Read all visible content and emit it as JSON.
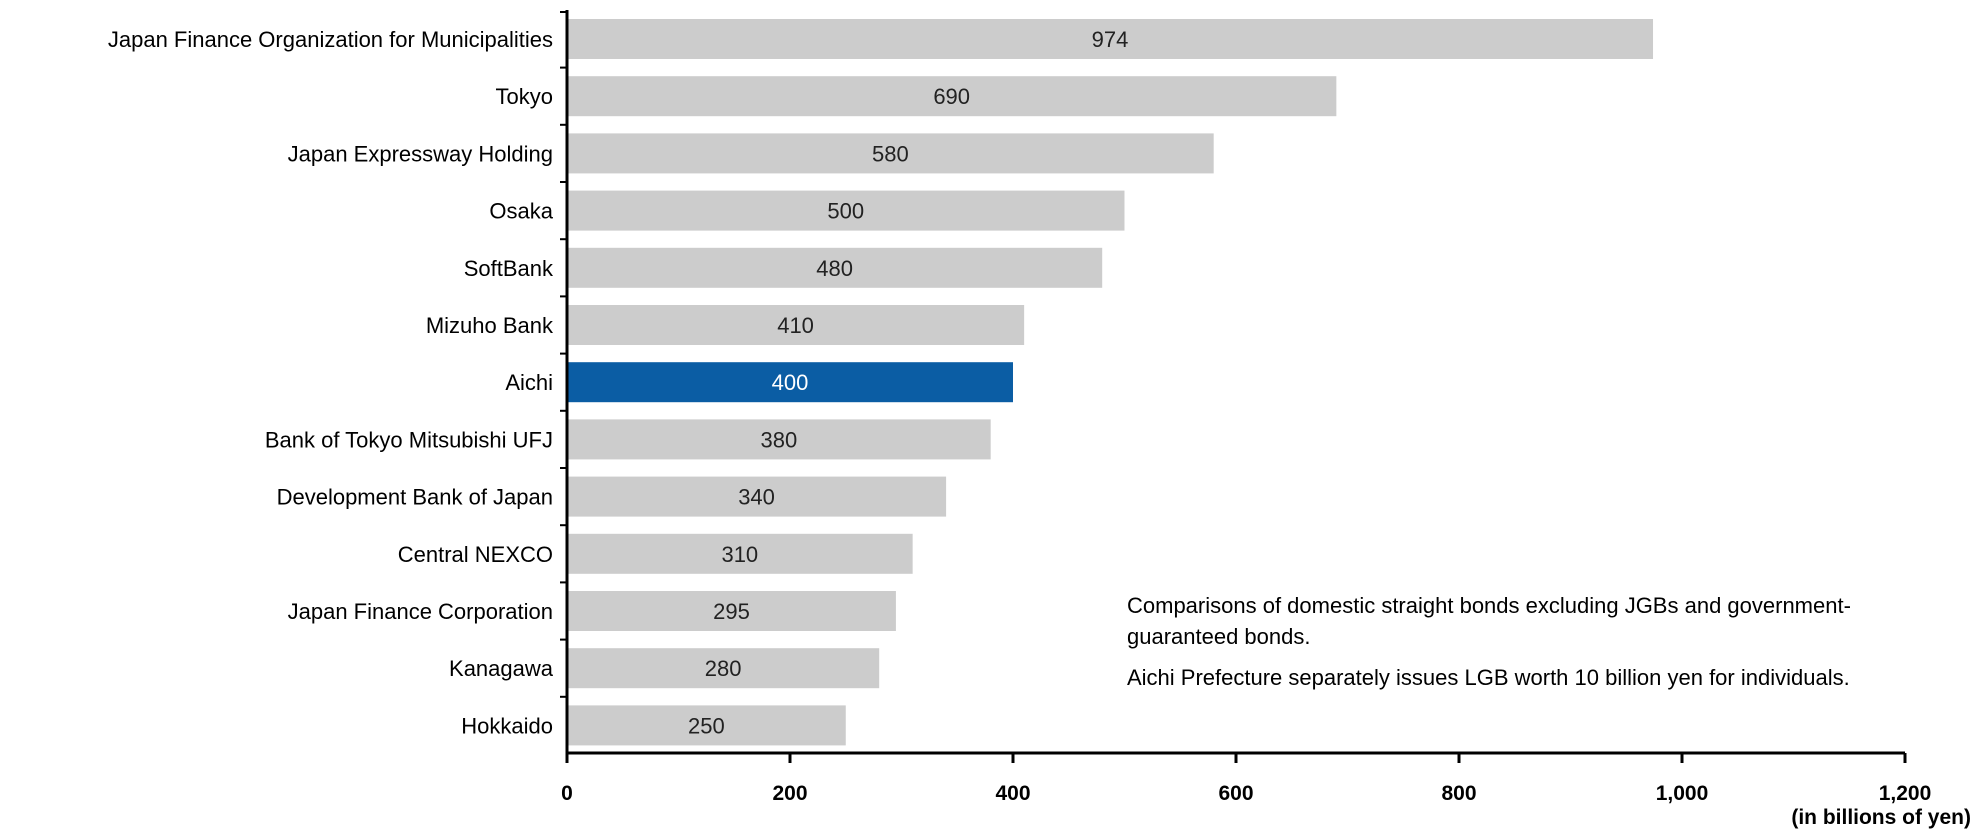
{
  "chart_data": {
    "type": "bar",
    "orientation": "horizontal",
    "title": "",
    "xlabel": "(in billions of yen)",
    "ylabel": "",
    "xlim": [
      0,
      1200
    ],
    "x_ticks": [
      0,
      200,
      400,
      600,
      800,
      1000,
      1200
    ],
    "x_tick_labels": [
      "0",
      "200",
      "400",
      "600",
      "800",
      "1,000",
      "1,200"
    ],
    "grid": false,
    "legend": "none",
    "categories": [
      "Japan Finance Organization for Municipalities",
      "Tokyo",
      "Japan Expressway Holding",
      "Osaka",
      "SoftBank",
      "Mizuho Bank",
      "Aichi",
      "Bank of Tokyo Mitsubishi UFJ",
      "Development Bank of Japan",
      "Central NEXCO",
      "Japan Finance Corporation",
      "Kanagawa",
      "Hokkaido"
    ],
    "values": [
      974,
      690,
      580,
      500,
      480,
      410,
      400,
      380,
      340,
      310,
      295,
      280,
      250
    ],
    "highlight": "Aichi",
    "colors": {
      "bar": "#cccccc",
      "highlight": "#0b5da4",
      "axis": "#000000"
    }
  },
  "notes": [
    "Comparisons of domestic straight bonds excluding JGBs and government-guaranteed bonds.",
    "Aichi Prefecture separately issues LGB worth 10 billion yen for individuals."
  ]
}
